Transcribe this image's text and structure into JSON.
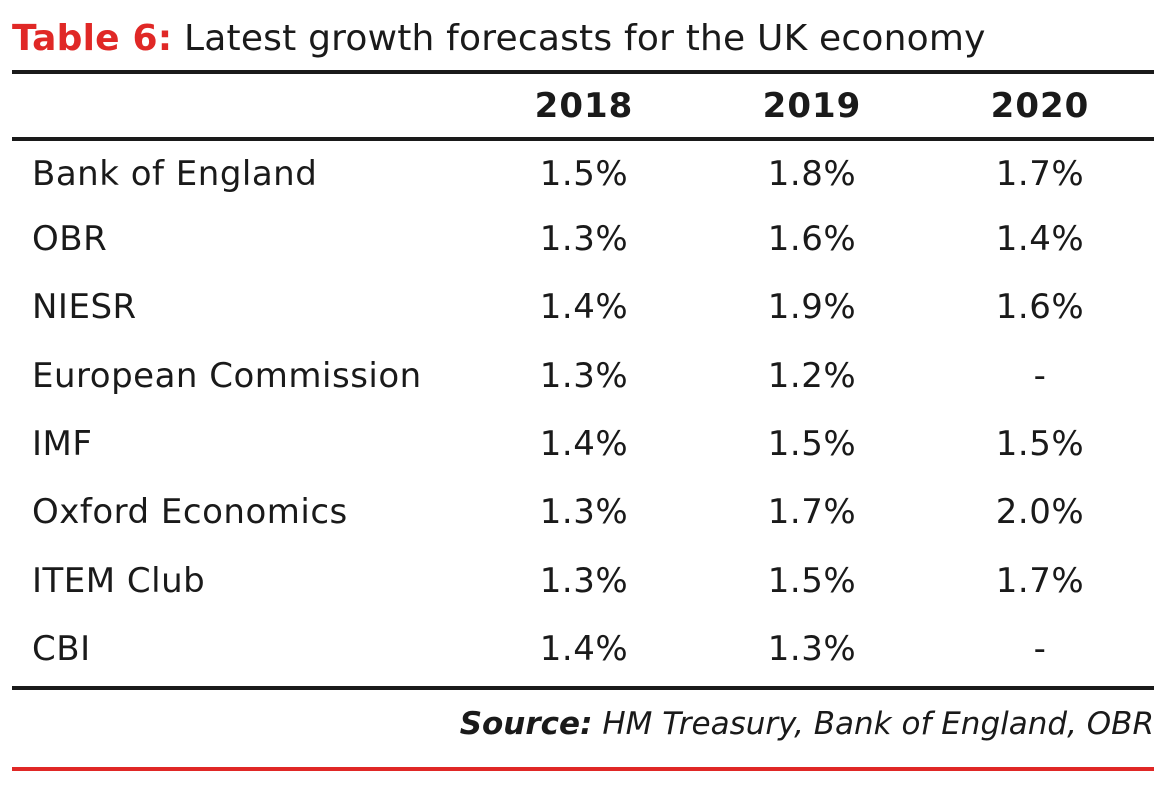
{
  "title": {
    "prefix": "Table 6:",
    "text": "Latest growth forecasts for the UK economy"
  },
  "colors": {
    "accent_red": "#e02826",
    "text": "#1a1a1a",
    "background": "#ffffff"
  },
  "table": {
    "columns": [
      "",
      "2018",
      "2019",
      "2020"
    ],
    "rows": [
      {
        "name": "Bank of England",
        "values": [
          "1.5%",
          "1.8%",
          "1.7%"
        ]
      },
      {
        "name": "OBR",
        "values": [
          "1.3%",
          "1.6%",
          "1.4%"
        ]
      },
      {
        "name": "NIESR",
        "values": [
          "1.4%",
          "1.9%",
          "1.6%"
        ]
      },
      {
        "name": "European Commission",
        "values": [
          "1.3%",
          "1.2%",
          "-"
        ]
      },
      {
        "name": "IMF",
        "values": [
          "1.4%",
          "1.5%",
          "1.5%"
        ]
      },
      {
        "name": "Oxford Economics",
        "values": [
          "1.3%",
          "1.7%",
          "2.0%"
        ]
      },
      {
        "name": "ITEM Club",
        "values": [
          "1.3%",
          "1.5%",
          "1.7%"
        ]
      },
      {
        "name": "CBI",
        "values": [
          "1.4%",
          "1.3%",
          "-"
        ]
      }
    ]
  },
  "source": {
    "label": "Source:",
    "text": "HM Treasury, Bank of England, OBR"
  }
}
